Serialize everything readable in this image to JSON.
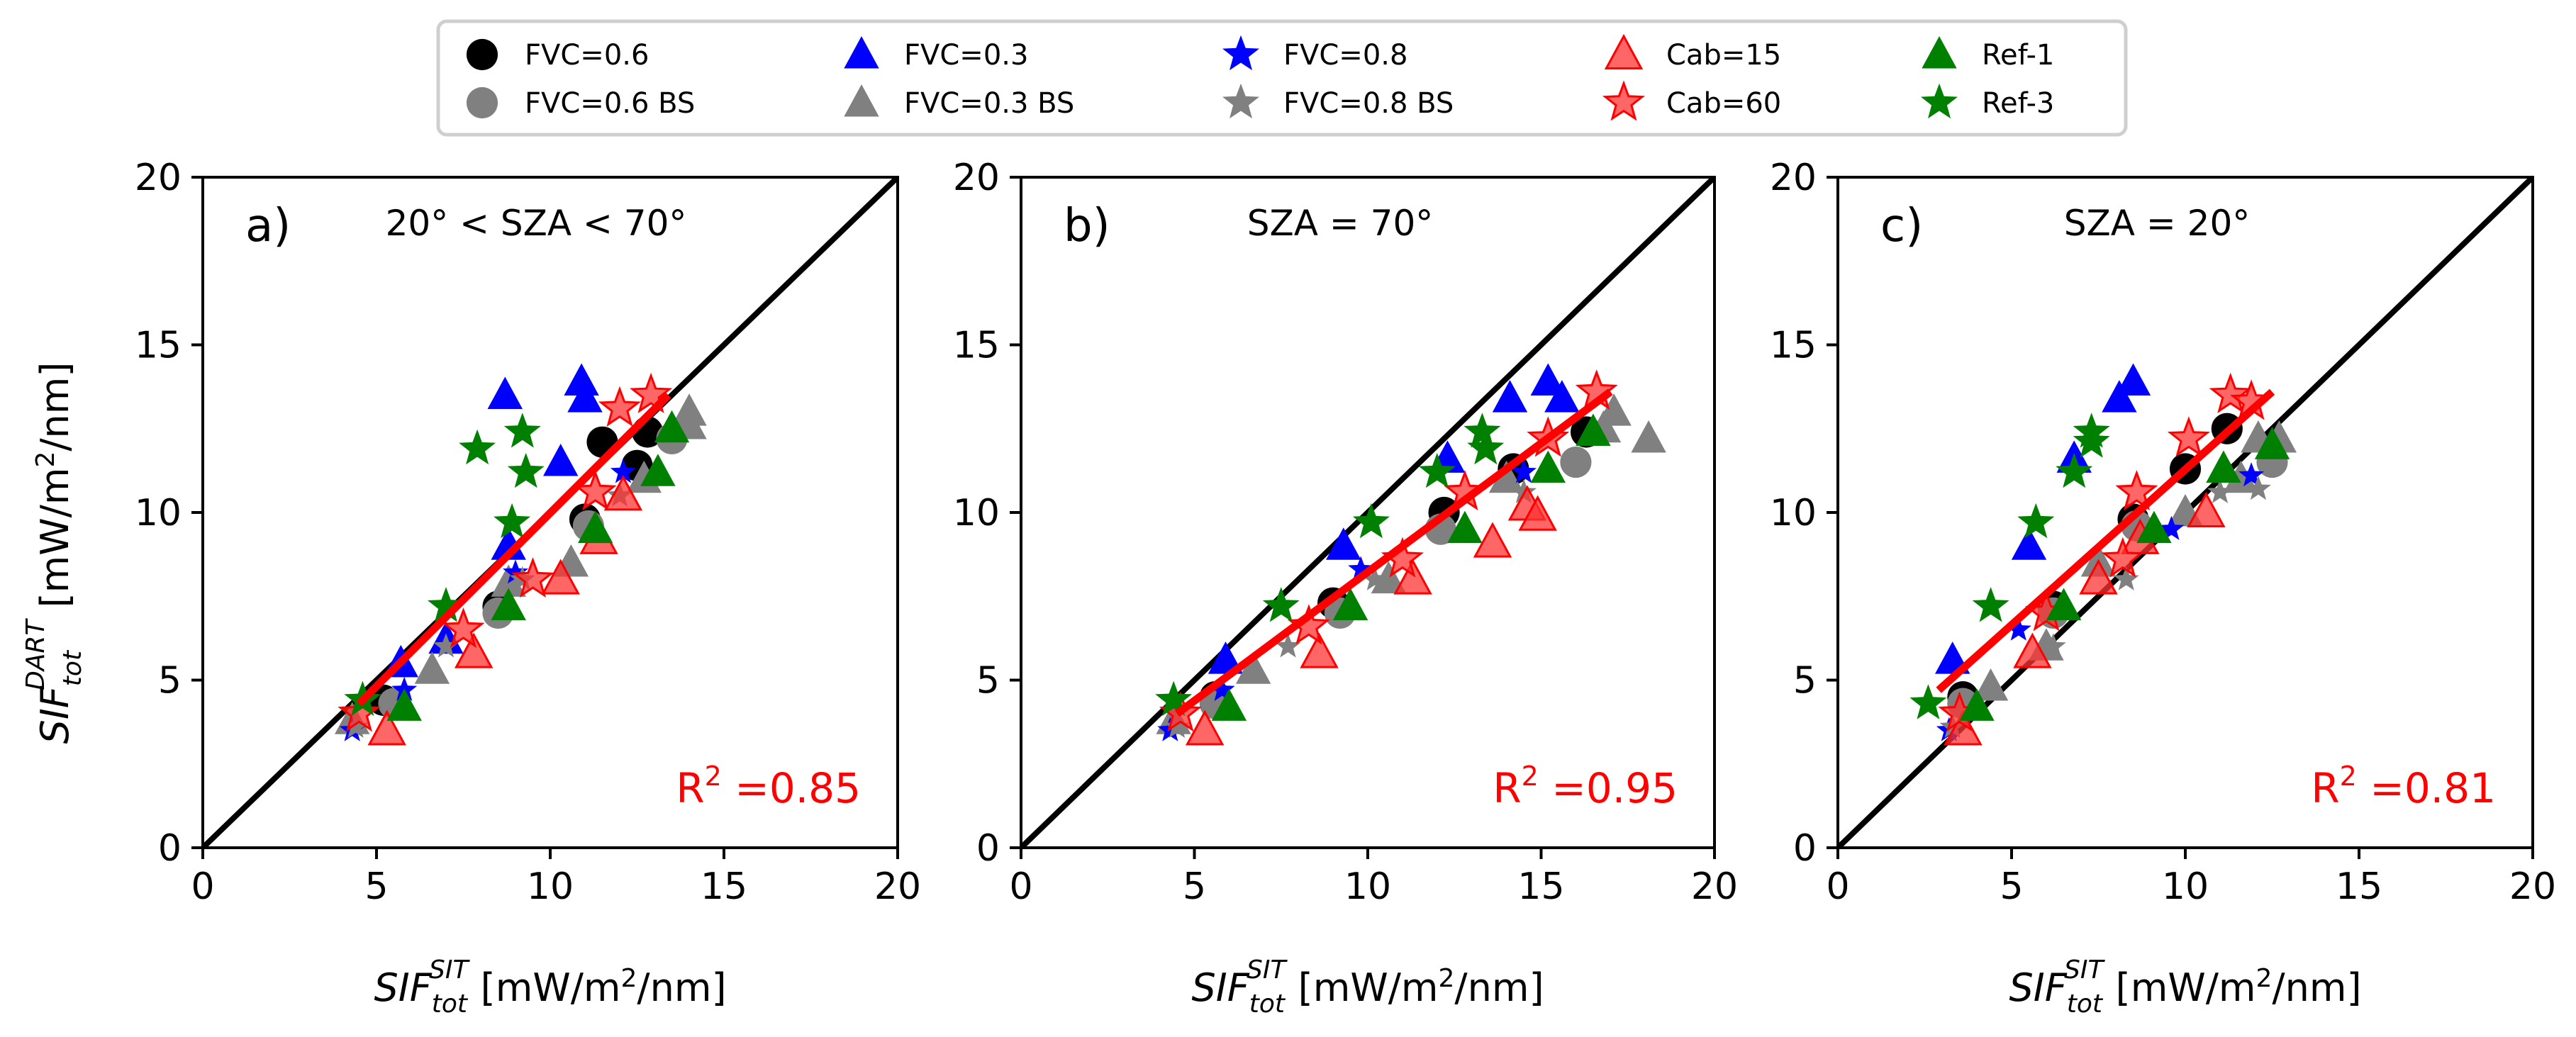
{
  "chart_data": [
    {
      "type": "scatter",
      "panel_label": "a)",
      "annotation": "20° < SZA < 70°",
      "r2_label": "R",
      "r2_exp": "2",
      "r2_value": "=0.85",
      "xlabel": "SIF_tot^SIT [mW/m²/nm]",
      "ylabel": "SIF_tot^DART [mW/m²/nm]",
      "xlim": [
        0,
        20
      ],
      "ylim": [
        0,
        20
      ],
      "xticks": [
        "0",
        "5",
        "10",
        "15",
        "20"
      ],
      "yticks": [
        "0",
        "5",
        "10",
        "15",
        "20"
      ],
      "one_to_one_line": true,
      "fit_line": {
        "x": [
          4.5,
          13.4
        ],
        "y": [
          4.3,
          13.5
        ]
      },
      "points": [
        {
          "x": 5.2,
          "y": 4.4,
          "s": "fvc06"
        },
        {
          "x": 8.5,
          "y": 7.2,
          "s": "fvc06"
        },
        {
          "x": 11.0,
          "y": 9.8,
          "s": "fvc06"
        },
        {
          "x": 12.8,
          "y": 12.4,
          "s": "fvc06"
        },
        {
          "x": 11.5,
          "y": 12.1,
          "s": "fvc06"
        },
        {
          "x": 12.5,
          "y": 11.4,
          "s": "fvc06"
        },
        {
          "x": 5.5,
          "y": 4.3,
          "s": "fvc06bs"
        },
        {
          "x": 8.5,
          "y": 7.0,
          "s": "fvc06bs"
        },
        {
          "x": 11.1,
          "y": 9.6,
          "s": "fvc06bs"
        },
        {
          "x": 13.5,
          "y": 12.2,
          "s": "fvc06bs"
        },
        {
          "x": 5.7,
          "y": 5.5,
          "s": "fvc03"
        },
        {
          "x": 8.8,
          "y": 9.0,
          "s": "fvc03"
        },
        {
          "x": 10.3,
          "y": 11.5,
          "s": "fvc03"
        },
        {
          "x": 11.0,
          "y": 13.4,
          "s": "fvc03"
        },
        {
          "x": 10.9,
          "y": 13.9,
          "s": "fvc03"
        },
        {
          "x": 8.7,
          "y": 13.5,
          "s": "fvc03"
        },
        {
          "x": 7.0,
          "y": 6.2,
          "s": "fvc03"
        },
        {
          "x": 4.3,
          "y": 3.8,
          "s": "fvc03bs"
        },
        {
          "x": 6.6,
          "y": 5.3,
          "s": "fvc03bs"
        },
        {
          "x": 8.8,
          "y": 7.9,
          "s": "fvc03bs"
        },
        {
          "x": 10.6,
          "y": 8.5,
          "s": "fvc03bs"
        },
        {
          "x": 12.7,
          "y": 11.0,
          "s": "fvc03bs"
        },
        {
          "x": 14.0,
          "y": 12.6,
          "s": "fvc03bs"
        },
        {
          "x": 14.0,
          "y": 13.0,
          "s": "fvc03bs"
        },
        {
          "x": 4.3,
          "y": 3.5,
          "s": "fvc08"
        },
        {
          "x": 5.8,
          "y": 4.7,
          "s": "fvc08"
        },
        {
          "x": 9.0,
          "y": 8.2,
          "s": "fvc08"
        },
        {
          "x": 12.1,
          "y": 11.2,
          "s": "fvc08"
        },
        {
          "x": 4.4,
          "y": 3.6,
          "s": "fvc08bs"
        },
        {
          "x": 7.0,
          "y": 6.0,
          "s": "fvc08bs"
        },
        {
          "x": 9.2,
          "y": 8.0,
          "s": "fvc08bs"
        },
        {
          "x": 12.0,
          "y": 10.5,
          "s": "fvc08bs"
        },
        {
          "x": 5.3,
          "y": 3.5,
          "s": "cab15"
        },
        {
          "x": 7.8,
          "y": 5.8,
          "s": "cab15"
        },
        {
          "x": 10.3,
          "y": 8.0,
          "s": "cab15"
        },
        {
          "x": 11.4,
          "y": 9.2,
          "s": "cab15"
        },
        {
          "x": 12.1,
          "y": 10.5,
          "s": "cab15"
        },
        {
          "x": 4.5,
          "y": 4.0,
          "s": "cab60"
        },
        {
          "x": 7.5,
          "y": 6.5,
          "s": "cab60"
        },
        {
          "x": 9.5,
          "y": 8.0,
          "s": "cab60"
        },
        {
          "x": 11.3,
          "y": 10.6,
          "s": "cab60"
        },
        {
          "x": 12.0,
          "y": 13.1,
          "s": "cab60"
        },
        {
          "x": 12.9,
          "y": 13.5,
          "s": "cab60"
        },
        {
          "x": 5.8,
          "y": 4.2,
          "s": "ref1"
        },
        {
          "x": 8.8,
          "y": 7.2,
          "s": "ref1"
        },
        {
          "x": 11.3,
          "y": 9.5,
          "s": "ref1"
        },
        {
          "x": 13.1,
          "y": 11.2,
          "s": "ref1"
        },
        {
          "x": 13.5,
          "y": 12.5,
          "s": "ref1"
        },
        {
          "x": 4.6,
          "y": 4.4,
          "s": "ref3"
        },
        {
          "x": 7.0,
          "y": 7.2,
          "s": "ref3"
        },
        {
          "x": 8.9,
          "y": 9.7,
          "s": "ref3"
        },
        {
          "x": 9.3,
          "y": 11.2,
          "s": "ref3"
        },
        {
          "x": 9.2,
          "y": 12.4,
          "s": "ref3"
        },
        {
          "x": 7.9,
          "y": 11.9,
          "s": "ref3"
        }
      ]
    },
    {
      "type": "scatter",
      "panel_label": "b)",
      "annotation": "SZA = 70°",
      "r2_label": "R",
      "r2_exp": "2",
      "r2_value": "=0.95",
      "xlabel": "SIF_tot^SIT [mW/m²/nm]",
      "ylabel": "",
      "xlim": [
        0,
        20
      ],
      "ylim": [
        0,
        20
      ],
      "xticks": [
        "0",
        "5",
        "10",
        "15",
        "20"
      ],
      "yticks": [
        "0",
        "5",
        "10",
        "15",
        "20"
      ],
      "one_to_one_line": true,
      "fit_line": {
        "x": [
          4.5,
          17.0
        ],
        "y": [
          4.0,
          13.6
        ]
      },
      "points": [
        {
          "x": 5.6,
          "y": 4.5,
          "s": "fvc06"
        },
        {
          "x": 9.0,
          "y": 7.3,
          "s": "fvc06"
        },
        {
          "x": 12.2,
          "y": 10.0,
          "s": "fvc06"
        },
        {
          "x": 14.2,
          "y": 11.3,
          "s": "fvc06"
        },
        {
          "x": 16.3,
          "y": 12.4,
          "s": "fvc06"
        },
        {
          "x": 5.6,
          "y": 4.3,
          "s": "fvc06bs"
        },
        {
          "x": 9.2,
          "y": 7.0,
          "s": "fvc06bs"
        },
        {
          "x": 12.1,
          "y": 9.5,
          "s": "fvc06bs"
        },
        {
          "x": 16.0,
          "y": 11.5,
          "s": "fvc06bs"
        },
        {
          "x": 5.9,
          "y": 5.6,
          "s": "fvc03"
        },
        {
          "x": 9.3,
          "y": 9.0,
          "s": "fvc03"
        },
        {
          "x": 12.3,
          "y": 11.6,
          "s": "fvc03"
        },
        {
          "x": 14.1,
          "y": 13.4,
          "s": "fvc03"
        },
        {
          "x": 15.2,
          "y": 13.9,
          "s": "fvc03"
        },
        {
          "x": 15.6,
          "y": 13.4,
          "s": "fvc03"
        },
        {
          "x": 4.4,
          "y": 3.8,
          "s": "fvc03bs"
        },
        {
          "x": 6.7,
          "y": 5.3,
          "s": "fvc03bs"
        },
        {
          "x": 10.6,
          "y": 8.0,
          "s": "fvc03bs"
        },
        {
          "x": 14.0,
          "y": 11.0,
          "s": "fvc03bs"
        },
        {
          "x": 16.8,
          "y": 12.5,
          "s": "fvc03bs"
        },
        {
          "x": 17.1,
          "y": 13.0,
          "s": "fvc03bs"
        },
        {
          "x": 18.1,
          "y": 12.2,
          "s": "fvc03bs"
        },
        {
          "x": 4.3,
          "y": 3.5,
          "s": "fvc08"
        },
        {
          "x": 5.8,
          "y": 4.7,
          "s": "fvc08"
        },
        {
          "x": 9.8,
          "y": 8.3,
          "s": "fvc08"
        },
        {
          "x": 14.5,
          "y": 11.2,
          "s": "fvc08"
        },
        {
          "x": 4.5,
          "y": 3.6,
          "s": "fvc08bs"
        },
        {
          "x": 7.7,
          "y": 6.0,
          "s": "fvc08bs"
        },
        {
          "x": 10.2,
          "y": 8.0,
          "s": "fvc08bs"
        },
        {
          "x": 14.5,
          "y": 10.6,
          "s": "fvc08bs"
        },
        {
          "x": 5.3,
          "y": 3.5,
          "s": "cab15"
        },
        {
          "x": 8.6,
          "y": 5.8,
          "s": "cab15"
        },
        {
          "x": 11.3,
          "y": 8.0,
          "s": "cab15"
        },
        {
          "x": 13.6,
          "y": 9.1,
          "s": "cab15"
        },
        {
          "x": 14.6,
          "y": 10.2,
          "s": "cab15"
        },
        {
          "x": 14.9,
          "y": 9.9,
          "s": "cab15"
        },
        {
          "x": 4.6,
          "y": 4.0,
          "s": "cab60"
        },
        {
          "x": 8.3,
          "y": 6.6,
          "s": "cab60"
        },
        {
          "x": 11.0,
          "y": 8.6,
          "s": "cab60"
        },
        {
          "x": 12.8,
          "y": 10.6,
          "s": "cab60"
        },
        {
          "x": 15.2,
          "y": 12.2,
          "s": "cab60"
        },
        {
          "x": 16.6,
          "y": 13.6,
          "s": "cab60"
        },
        {
          "x": 6.0,
          "y": 4.2,
          "s": "ref1"
        },
        {
          "x": 9.5,
          "y": 7.2,
          "s": "ref1"
        },
        {
          "x": 12.8,
          "y": 9.5,
          "s": "ref1"
        },
        {
          "x": 15.2,
          "y": 11.3,
          "s": "ref1"
        },
        {
          "x": 16.5,
          "y": 12.4,
          "s": "ref1"
        },
        {
          "x": 4.4,
          "y": 4.4,
          "s": "ref3"
        },
        {
          "x": 7.5,
          "y": 7.2,
          "s": "ref3"
        },
        {
          "x": 10.1,
          "y": 9.7,
          "s": "ref3"
        },
        {
          "x": 12.0,
          "y": 11.2,
          "s": "ref3"
        },
        {
          "x": 13.3,
          "y": 12.4,
          "s": "ref3"
        },
        {
          "x": 13.4,
          "y": 11.9,
          "s": "ref3"
        }
      ]
    },
    {
      "type": "scatter",
      "panel_label": "c)",
      "annotation": "SZA = 20°",
      "r2_label": "R",
      "r2_exp": "2",
      "r2_value": "=0.81",
      "xlabel": "SIF_tot^SIT [mW/m²/nm]",
      "ylabel": "",
      "xlim": [
        0,
        20
      ],
      "ylim": [
        0,
        20
      ],
      "xticks": [
        "0",
        "5",
        "10",
        "15",
        "20"
      ],
      "yticks": [
        "0",
        "5",
        "10",
        "15",
        "20"
      ],
      "one_to_one_line": true,
      "fit_line": {
        "x": [
          2.9,
          12.5
        ],
        "y": [
          4.7,
          13.6
        ]
      },
      "points": [
        {
          "x": 3.6,
          "y": 4.5,
          "s": "fvc06"
        },
        {
          "x": 6.2,
          "y": 7.2,
          "s": "fvc06"
        },
        {
          "x": 8.5,
          "y": 9.8,
          "s": "fvc06"
        },
        {
          "x": 10.0,
          "y": 11.3,
          "s": "fvc06"
        },
        {
          "x": 11.2,
          "y": 12.5,
          "s": "fvc06"
        },
        {
          "x": 3.6,
          "y": 4.3,
          "s": "fvc06bs"
        },
        {
          "x": 6.2,
          "y": 7.0,
          "s": "fvc06bs"
        },
        {
          "x": 8.6,
          "y": 9.6,
          "s": "fvc06bs"
        },
        {
          "x": 12.5,
          "y": 11.5,
          "s": "fvc06bs"
        },
        {
          "x": 3.3,
          "y": 5.6,
          "s": "fvc03"
        },
        {
          "x": 5.5,
          "y": 9.0,
          "s": "fvc03"
        },
        {
          "x": 6.8,
          "y": 11.6,
          "s": "fvc03"
        },
        {
          "x": 8.1,
          "y": 13.4,
          "s": "fvc03"
        },
        {
          "x": 8.5,
          "y": 13.9,
          "s": "fvc03"
        },
        {
          "x": 4.4,
          "y": 4.8,
          "s": "fvc03bs"
        },
        {
          "x": 6.0,
          "y": 6.0,
          "s": "fvc03bs"
        },
        {
          "x": 7.5,
          "y": 8.5,
          "s": "fvc03bs"
        },
        {
          "x": 10.0,
          "y": 10.0,
          "s": "fvc03bs"
        },
        {
          "x": 11.6,
          "y": 11.0,
          "s": "fvc03bs"
        },
        {
          "x": 12.1,
          "y": 12.2,
          "s": "fvc03bs"
        },
        {
          "x": 12.7,
          "y": 12.2,
          "s": "fvc03bs"
        },
        {
          "x": 3.2,
          "y": 3.5,
          "s": "fvc08"
        },
        {
          "x": 5.2,
          "y": 6.5,
          "s": "fvc08"
        },
        {
          "x": 9.6,
          "y": 9.5,
          "s": "fvc08"
        },
        {
          "x": 11.9,
          "y": 11.1,
          "s": "fvc08"
        },
        {
          "x": 3.3,
          "y": 3.6,
          "s": "fvc08bs"
        },
        {
          "x": 6.2,
          "y": 6.0,
          "s": "fvc08bs"
        },
        {
          "x": 8.3,
          "y": 8.0,
          "s": "fvc08bs"
        },
        {
          "x": 11.0,
          "y": 10.6,
          "s": "fvc08bs"
        },
        {
          "x": 12.1,
          "y": 10.7,
          "s": "fvc08bs"
        },
        {
          "x": 3.6,
          "y": 3.5,
          "s": "cab15"
        },
        {
          "x": 5.6,
          "y": 5.8,
          "s": "cab15"
        },
        {
          "x": 7.5,
          "y": 8.0,
          "s": "cab15"
        },
        {
          "x": 8.7,
          "y": 9.2,
          "s": "cab15"
        },
        {
          "x": 10.6,
          "y": 10.0,
          "s": "cab15"
        },
        {
          "x": 3.5,
          "y": 4.0,
          "s": "cab60"
        },
        {
          "x": 6.0,
          "y": 7.0,
          "s": "cab60"
        },
        {
          "x": 8.2,
          "y": 8.6,
          "s": "cab60"
        },
        {
          "x": 8.6,
          "y": 10.6,
          "s": "cab60"
        },
        {
          "x": 10.1,
          "y": 12.2,
          "s": "cab60"
        },
        {
          "x": 11.3,
          "y": 13.5,
          "s": "cab60"
        },
        {
          "x": 11.9,
          "y": 13.3,
          "s": "cab60"
        },
        {
          "x": 4.0,
          "y": 4.2,
          "s": "ref1"
        },
        {
          "x": 6.5,
          "y": 7.2,
          "s": "ref1"
        },
        {
          "x": 9.1,
          "y": 9.5,
          "s": "ref1"
        },
        {
          "x": 11.1,
          "y": 11.3,
          "s": "ref1"
        },
        {
          "x": 12.5,
          "y": 12.0,
          "s": "ref1"
        },
        {
          "x": 2.6,
          "y": 4.3,
          "s": "ref3"
        },
        {
          "x": 4.4,
          "y": 7.2,
          "s": "ref3"
        },
        {
          "x": 5.7,
          "y": 9.7,
          "s": "ref3"
        },
        {
          "x": 6.8,
          "y": 11.2,
          "s": "ref3"
        },
        {
          "x": 7.3,
          "y": 12.4,
          "s": "ref3"
        },
        {
          "x": 7.3,
          "y": 12.1,
          "s": "ref3"
        }
      ]
    }
  ],
  "legend": [
    {
      "key": "fvc06",
      "label": "FVC=0.6",
      "marker": "circle",
      "color": "#000000"
    },
    {
      "key": "fvc06bs",
      "label": "FVC=0.6 BS",
      "marker": "circle",
      "color": "#808080"
    },
    {
      "key": "fvc03",
      "label": "FVC=0.3",
      "marker": "triangle",
      "color": "#0000ff"
    },
    {
      "key": "fvc03bs",
      "label": "FVC=0.3 BS",
      "marker": "triangle",
      "color": "#808080"
    },
    {
      "key": "fvc08",
      "label": "FVC=0.8",
      "marker": "star",
      "color": "#0000ff"
    },
    {
      "key": "fvc08bs",
      "label": "FVC=0.8 BS",
      "marker": "star",
      "color": "#808080"
    },
    {
      "key": "cab15",
      "label": "Cab=15",
      "marker": "triangle",
      "color": "#ff3333"
    },
    {
      "key": "cab60",
      "label": "Cab=60",
      "marker": "star",
      "color": "#ff3333"
    },
    {
      "key": "ref1",
      "label": "Ref-1",
      "marker": "triangle",
      "color": "#008000"
    },
    {
      "key": "ref3",
      "label": "Ref-3",
      "marker": "star",
      "color": "#008000"
    }
  ],
  "colors": {
    "fit_line": "#ff0000",
    "one_to_one": "#000000",
    "r2": "#ff0000"
  }
}
